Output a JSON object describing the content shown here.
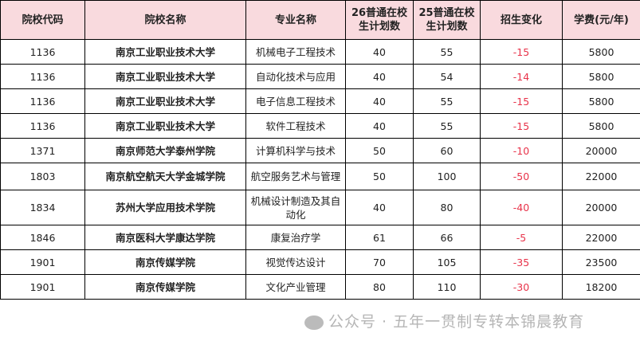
{
  "headers": [
    "院校代码",
    "院校名称",
    "专业名称",
    "26普通在校生计划数",
    "25普通在校生计划数",
    "招生变化",
    "学费(元/年)"
  ],
  "rows": [
    [
      "1136",
      "南京工业职业技术大学",
      "机械电子工程技术",
      "40",
      "55",
      "-15",
      "5800"
    ],
    [
      "1136",
      "南京工业职业技术大学",
      "自动化技术与应用",
      "40",
      "54",
      "-14",
      "5800"
    ],
    [
      "1136",
      "南京工业职业技术大学",
      "电子信息工程技术",
      "40",
      "55",
      "-15",
      "5800"
    ],
    [
      "1136",
      "南京工业职业技术大学",
      "软件工程技术",
      "40",
      "55",
      "-15",
      "5800"
    ],
    [
      "1371",
      "南京师范大学泰州学院",
      "计算机科学与技术",
      "50",
      "60",
      "-10",
      "20000"
    ],
    [
      "1803",
      "南京航空航天大学金城学院",
      "航空服务艺术与管理",
      "50",
      "100",
      "-50",
      "22000"
    ],
    [
      "1834",
      "苏州大学应用技术学院",
      "机械设计制造及其自动化",
      "40",
      "80",
      "-40",
      "20000"
    ],
    [
      "1846",
      "南京医科大学康达学院",
      "康复治疗学",
      "61",
      "66",
      "-5",
      "22000"
    ],
    [
      "1901",
      "南京传媒学院",
      "视觉传达设计",
      "70",
      "105",
      "-35",
      "23500"
    ],
    [
      "1901",
      "南京传媒学院",
      "文化产业管理",
      "80",
      "110",
      "-30",
      "18200"
    ]
  ],
  "watermark": "公众号 · 五年一贯制专转本锦晨教育",
  "colors": {
    "header_bg": "#f9dade",
    "negative": "#e8334a"
  }
}
